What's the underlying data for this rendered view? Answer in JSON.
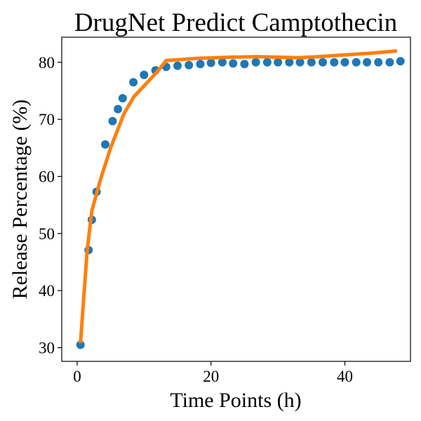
{
  "chart_data": {
    "type": "line",
    "title": "DrugNet Predict Camptothecin",
    "xlabel": "Time Points (h)",
    "ylabel": "Release Percentage (%)",
    "xlim": [
      -2.3,
      49.8
    ],
    "ylim": [
      27.6,
      84.4
    ],
    "xticks": [
      0,
      20,
      40
    ],
    "yticks": [
      30,
      40,
      50,
      60,
      70,
      80
    ],
    "grid": false,
    "legend": "none",
    "series": [
      {
        "kind": "scatter",
        "color": "#1f77b4",
        "x": [
          0.5,
          1.7,
          2.2,
          2.9,
          4.2,
          5.3,
          6.1,
          6.8,
          8.4,
          10.0,
          11.7,
          13.3,
          15.0,
          16.7,
          18.4,
          20.0,
          21.7,
          23.3,
          25.0,
          26.7,
          28.4,
          30.0,
          31.7,
          33.3,
          35.0,
          36.7,
          38.4,
          40.0,
          41.7,
          43.3,
          45.0,
          46.7,
          48.3
        ],
        "y": [
          30.5,
          47.1,
          52.4,
          57.3,
          65.6,
          69.7,
          71.8,
          73.7,
          76.5,
          77.8,
          78.6,
          79.2,
          79.4,
          79.5,
          79.7,
          79.9,
          80.0,
          79.8,
          79.7,
          80.0,
          80.0,
          80.0,
          80.0,
          80.0,
          80.0,
          80.0,
          80.0,
          80.0,
          80.0,
          80.0,
          80.0,
          80.0,
          80.2
        ]
      },
      {
        "kind": "line",
        "color": "#ff7f0e",
        "x": [
          0.5,
          1.5,
          2.2,
          3.5,
          5.0,
          7.0,
          8.5,
          10.5,
          12.0,
          13.3,
          18.0,
          23.0,
          27.0,
          30.0,
          33.0,
          36.0,
          40.0,
          44.0,
          47.8
        ],
        "y": [
          30.8,
          47.0,
          54.0,
          59.5,
          65.0,
          71.0,
          74.0,
          76.5,
          78.4,
          80.3,
          80.7,
          80.9,
          81.0,
          80.9,
          80.8,
          81.0,
          81.3,
          81.6,
          82.0
        ]
      }
    ]
  }
}
